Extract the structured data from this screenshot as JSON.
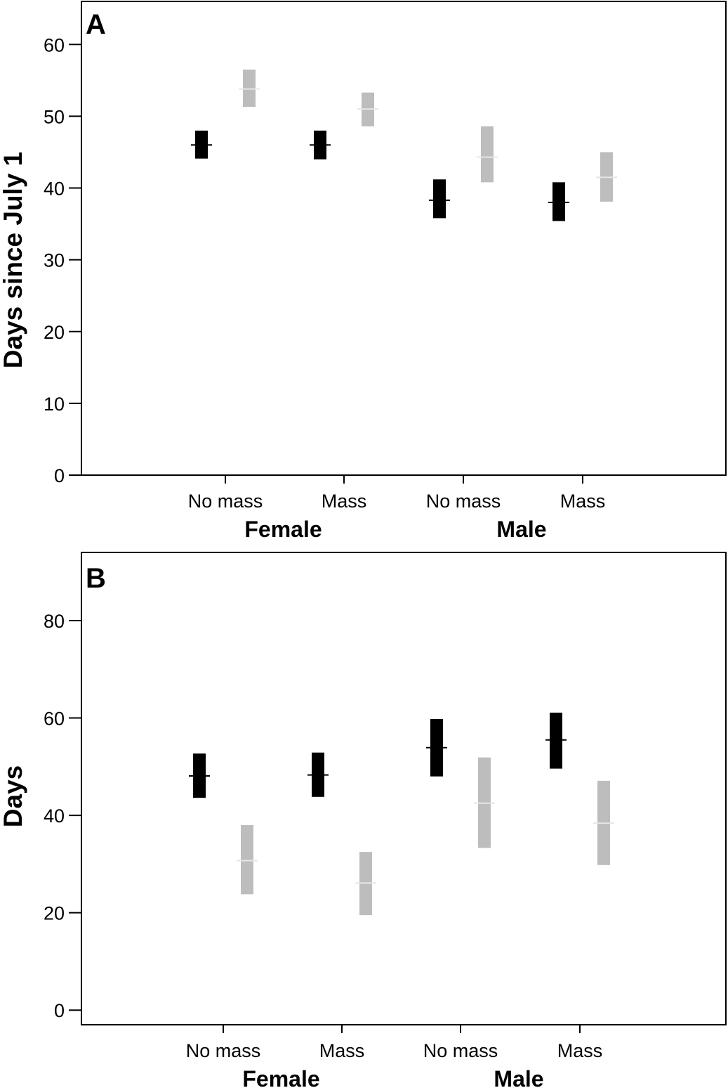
{
  "colors": {
    "series_dark": "#000000",
    "series_light": "#bdbdbd",
    "axis": "#000000",
    "background": "#ffffff"
  },
  "chart_data": [
    {
      "type": "bar",
      "panel_label": "A",
      "ylabel": "Days since July 1",
      "ylim": [
        0,
        66
      ],
      "yticks": [
        "0",
        "10",
        "20",
        "30",
        "40",
        "50",
        "60"
      ],
      "categories": [
        "No mass",
        "Mass",
        "No mass",
        "Mass"
      ],
      "groups": [
        "Female",
        "Male"
      ],
      "grid": false,
      "legend": "none",
      "series": [
        {
          "color": "#000000",
          "mean": [
            46,
            46,
            38.3,
            38
          ],
          "lower": [
            44.1,
            44,
            35.8,
            35.4
          ],
          "upper": [
            48,
            48,
            41.2,
            40.8
          ]
        },
        {
          "color": "#bdbdbd",
          "mean": [
            53.8,
            51,
            44.3,
            41.5
          ],
          "lower": [
            51.3,
            48.6,
            40.8,
            38.1
          ],
          "upper": [
            56.5,
            53.3,
            48.6,
            45
          ]
        }
      ]
    },
    {
      "type": "bar",
      "panel_label": "B",
      "ylabel": "Days",
      "ylim": [
        -3,
        94
      ],
      "yticks": [
        "0",
        "20",
        "40",
        "60",
        "80"
      ],
      "categories": [
        "No mass",
        "Mass",
        "No mass",
        "Mass"
      ],
      "groups": [
        "Female",
        "Male"
      ],
      "grid": false,
      "legend": "none",
      "series": [
        {
          "color": "#000000",
          "mean": [
            48.1,
            48.3,
            53.9,
            55.5
          ],
          "lower": [
            43.6,
            43.8,
            48,
            49.6
          ],
          "upper": [
            52.7,
            52.9,
            59.8,
            61.1
          ]
        },
        {
          "color": "#bdbdbd",
          "mean": [
            30.7,
            26.1,
            42.5,
            38.4
          ],
          "lower": [
            23.8,
            19.5,
            33.3,
            29.8
          ],
          "upper": [
            38,
            32.5,
            51.9,
            47.1
          ]
        }
      ]
    }
  ]
}
